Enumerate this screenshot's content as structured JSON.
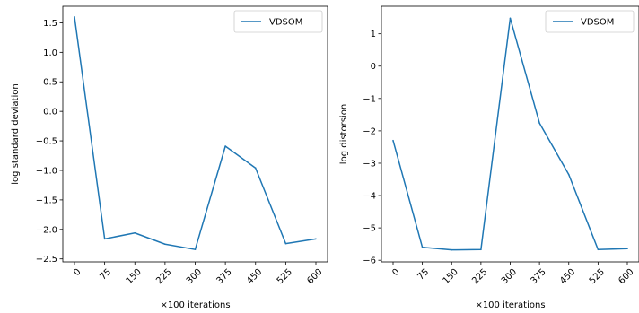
{
  "chart_data": [
    {
      "type": "line",
      "x": [
        0,
        75,
        150,
        225,
        300,
        375,
        450,
        525,
        600
      ],
      "xticks": [
        "0",
        "75",
        "150",
        "225",
        "300",
        "375",
        "450",
        "525",
        "600"
      ],
      "series": [
        {
          "name": "VDSOM",
          "color": "#1f77b4",
          "values": [
            1.6,
            -2.16,
            -2.06,
            -2.25,
            -2.34,
            -0.59,
            -0.96,
            -2.24,
            -2.16
          ]
        }
      ],
      "xlabel": "×100 iterations",
      "ylabel": "log standard deviation",
      "ylim": [
        -2.55,
        1.78
      ],
      "yticks": [
        -2.5,
        -2.0,
        -1.5,
        -1.0,
        -0.5,
        0.0,
        0.5,
        1.0,
        1.5
      ],
      "ytick_labels": [
        "−2.5",
        "−2.0",
        "−1.5",
        "−1.0",
        "−0.5",
        "0.0",
        "0.5",
        "1.0",
        "1.5"
      ],
      "legend": "top-right",
      "grid": false
    },
    {
      "type": "line",
      "x": [
        0,
        75,
        150,
        225,
        300,
        375,
        450,
        525,
        600
      ],
      "xticks": [
        "0",
        "75",
        "150",
        "225",
        "300",
        "375",
        "450",
        "525",
        "600"
      ],
      "series": [
        {
          "name": "VDSOM",
          "color": "#1f77b4",
          "values": [
            -2.3,
            -5.6,
            -5.68,
            -5.67,
            1.48,
            -1.76,
            -3.35,
            -5.67,
            -5.64
          ]
        }
      ],
      "xlabel": "×100 iterations",
      "ylabel": "log distorsion",
      "ylim": [
        -6.05,
        1.85
      ],
      "yticks": [
        -6,
        -5,
        -4,
        -3,
        -2,
        -1,
        0,
        1
      ],
      "ytick_labels": [
        "−6",
        "−5",
        "−4",
        "−3",
        "−2",
        "−1",
        "0",
        "1"
      ],
      "legend": "top-right",
      "grid": false
    }
  ]
}
